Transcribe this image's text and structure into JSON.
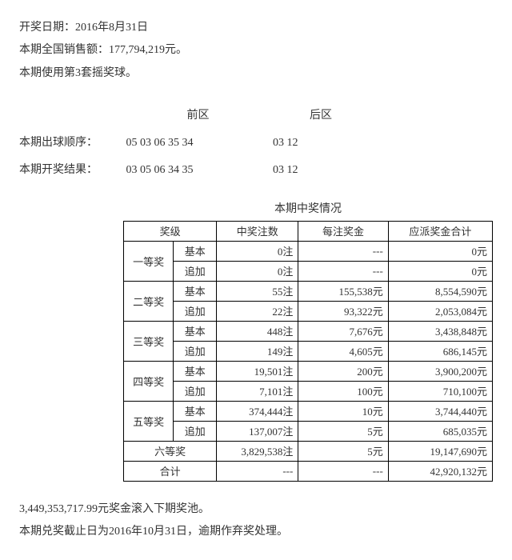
{
  "header": {
    "date_label": "开奖日期：",
    "date_value": "2016年8月31日",
    "sales_label": "本期全国销售额：",
    "sales_value": "177,794,219元。",
    "ballset_text": "本期使用第3套摇奖球。"
  },
  "zones": {
    "front_label": "前区",
    "back_label": "后区"
  },
  "draw_order": {
    "label": "本期出球顺序：",
    "front": "05 03 06 35 34",
    "back": "03 12"
  },
  "draw_result": {
    "label": "本期开奖结果：",
    "front": "03 05 06 34 35",
    "back": "03 12"
  },
  "table": {
    "title": "本期中奖情况",
    "columns": {
      "tier": "奖级",
      "count": "中奖注数",
      "per": "每注奖金",
      "total": "应派奖金合计"
    },
    "sub": {
      "basic": "基本",
      "add": "追加"
    },
    "tiers": [
      {
        "name": "一等奖",
        "rows": [
          {
            "sub": "basic",
            "count": "0注",
            "per": "---",
            "total": "0元"
          },
          {
            "sub": "add",
            "count": "0注",
            "per": "---",
            "total": "0元"
          }
        ]
      },
      {
        "name": "二等奖",
        "rows": [
          {
            "sub": "basic",
            "count": "55注",
            "per": "155,538元",
            "total": "8,554,590元"
          },
          {
            "sub": "add",
            "count": "22注",
            "per": "93,322元",
            "total": "2,053,084元"
          }
        ]
      },
      {
        "name": "三等奖",
        "rows": [
          {
            "sub": "basic",
            "count": "448注",
            "per": "7,676元",
            "total": "3,438,848元"
          },
          {
            "sub": "add",
            "count": "149注",
            "per": "4,605元",
            "total": "686,145元"
          }
        ]
      },
      {
        "name": "四等奖",
        "rows": [
          {
            "sub": "basic",
            "count": "19,501注",
            "per": "200元",
            "total": "3,900,200元"
          },
          {
            "sub": "add",
            "count": "7,101注",
            "per": "100元",
            "total": "710,100元"
          }
        ]
      },
      {
        "name": "五等奖",
        "rows": [
          {
            "sub": "basic",
            "count": "374,444注",
            "per": "10元",
            "total": "3,744,440元"
          },
          {
            "sub": "add",
            "count": "137,007注",
            "per": "5元",
            "total": "685,035元"
          }
        ]
      }
    ],
    "tier6": {
      "name": "六等奖",
      "count": "3,829,538注",
      "per": "5元",
      "total": "19,147,690元"
    },
    "sum": {
      "name": "合计",
      "count": "---",
      "per": "---",
      "total": "42,920,132元"
    }
  },
  "footer": {
    "rollover": "3,449,353,717.99元奖金滚入下期奖池。",
    "deadline": "本期兑奖截止日为2016年10月31日，逾期作弃奖处理。"
  }
}
